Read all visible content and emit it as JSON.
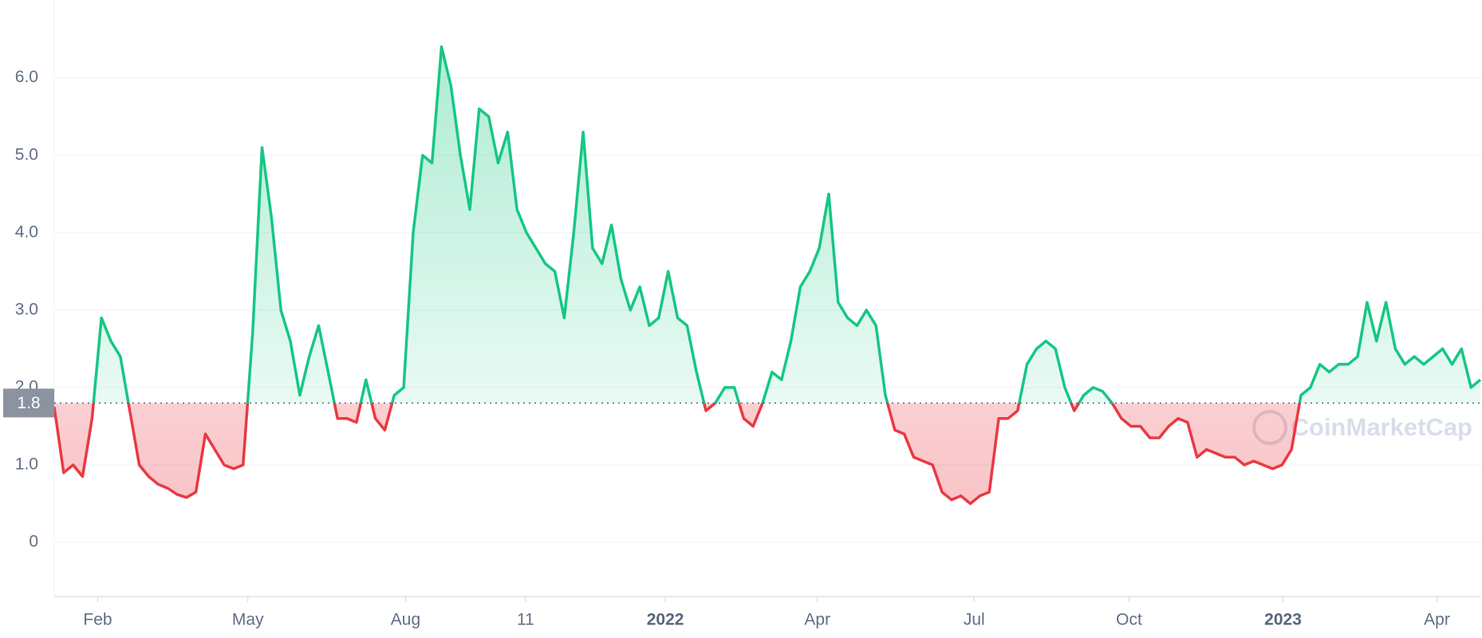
{
  "chart_data": {
    "type": "line",
    "watermark": "CoinMarketCap",
    "baseline": 1.8,
    "colors": {
      "above": "#16c784",
      "below": "#ea3943"
    },
    "grid": true,
    "values": [
      1.75,
      0.9,
      1.0,
      0.85,
      1.6,
      2.9,
      2.6,
      2.4,
      1.7,
      1.0,
      0.85,
      0.75,
      0.7,
      0.62,
      0.58,
      0.65,
      1.4,
      1.2,
      1.0,
      0.95,
      1.0,
      2.7,
      5.1,
      4.2,
      3.0,
      2.6,
      1.9,
      2.4,
      2.8,
      2.2,
      1.6,
      1.6,
      1.55,
      2.1,
      1.6,
      1.45,
      1.9,
      2.0,
      4.0,
      5.0,
      4.9,
      6.4,
      5.9,
      5.0,
      4.3,
      5.6,
      5.5,
      4.9,
      5.3,
      4.3,
      4.0,
      3.8,
      3.6,
      3.5,
      2.9,
      4.0,
      5.3,
      3.8,
      3.6,
      4.1,
      3.4,
      3.0,
      3.3,
      2.8,
      2.9,
      3.5,
      2.9,
      2.8,
      2.2,
      1.7,
      1.8,
      2.0,
      2.0,
      1.6,
      1.5,
      1.8,
      2.2,
      2.1,
      2.6,
      3.3,
      3.5,
      3.8,
      4.5,
      3.1,
      2.9,
      2.8,
      3.0,
      2.8,
      1.9,
      1.45,
      1.4,
      1.1,
      1.05,
      1.0,
      0.65,
      0.55,
      0.6,
      0.5,
      0.6,
      0.65,
      1.6,
      1.6,
      1.7,
      2.3,
      2.5,
      2.6,
      2.5,
      2.0,
      1.7,
      1.9,
      2.0,
      1.95,
      1.8,
      1.6,
      1.5,
      1.5,
      1.35,
      1.35,
      1.5,
      1.6,
      1.55,
      1.1,
      1.2,
      1.15,
      1.1,
      1.1,
      1.0,
      1.05,
      1.0,
      0.95,
      1.0,
      1.2,
      1.9,
      2.0,
      2.3,
      2.2,
      2.3,
      2.3,
      2.4,
      3.1,
      2.6,
      3.1,
      2.5,
      2.3,
      2.4,
      2.3,
      2.4,
      2.5,
      2.3,
      2.5,
      2.0,
      2.1
    ],
    "xlim": [
      0,
      151
    ],
    "xticks": [
      {
        "value": 4.6,
        "label": "Feb"
      },
      {
        "value": 20.5,
        "label": "May"
      },
      {
        "value": 37.2,
        "label": "Aug"
      },
      {
        "value": 49.9,
        "label": "11"
      },
      {
        "value": 64.7,
        "label": "2022",
        "bold": true
      },
      {
        "value": 80.8,
        "label": "Apr"
      },
      {
        "value": 97.4,
        "label": "Jul"
      },
      {
        "value": 113.8,
        "label": "Oct"
      },
      {
        "value": 130.1,
        "label": "2023",
        "bold": true
      },
      {
        "value": 146.4,
        "label": "Apr"
      }
    ],
    "ylim": [
      -0.7,
      6.8
    ],
    "yticks": [
      0,
      {
        "value": 1,
        "label": "1.0"
      },
      {
        "value": 2,
        "label": "2.0"
      },
      {
        "value": 3,
        "label": "3.0"
      },
      {
        "value": 4,
        "label": "4.0"
      },
      {
        "value": 5,
        "label": "5.0"
      },
      {
        "value": 6,
        "label": "6.0"
      }
    ]
  }
}
